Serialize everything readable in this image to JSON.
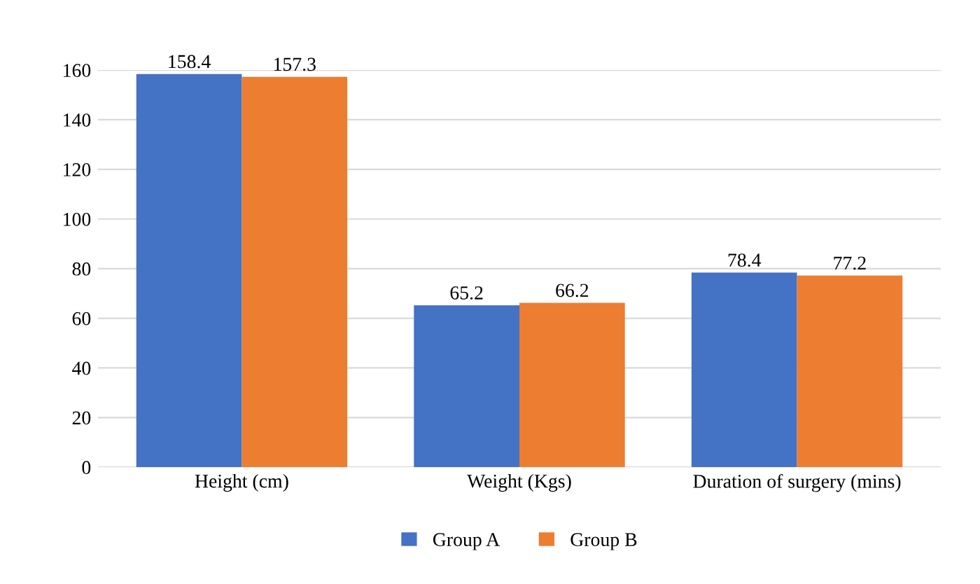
{
  "chart_data": {
    "type": "bar",
    "categories": [
      "Height (cm)",
      "Weight (Kgs)",
      "Duration of surgery (mins)"
    ],
    "series": [
      {
        "name": "Group A",
        "color": "#4472c4",
        "values": [
          158.4,
          65.2,
          78.4
        ]
      },
      {
        "name": "Group B",
        "color": "#ed7d31",
        "values": [
          157.3,
          66.2,
          77.2
        ]
      }
    ],
    "ylim": [
      0,
      160
    ],
    "yticks": [
      0,
      20,
      40,
      60,
      80,
      100,
      120,
      140,
      160
    ],
    "grid": "y",
    "legend": "bottom",
    "data_labels": true
  }
}
